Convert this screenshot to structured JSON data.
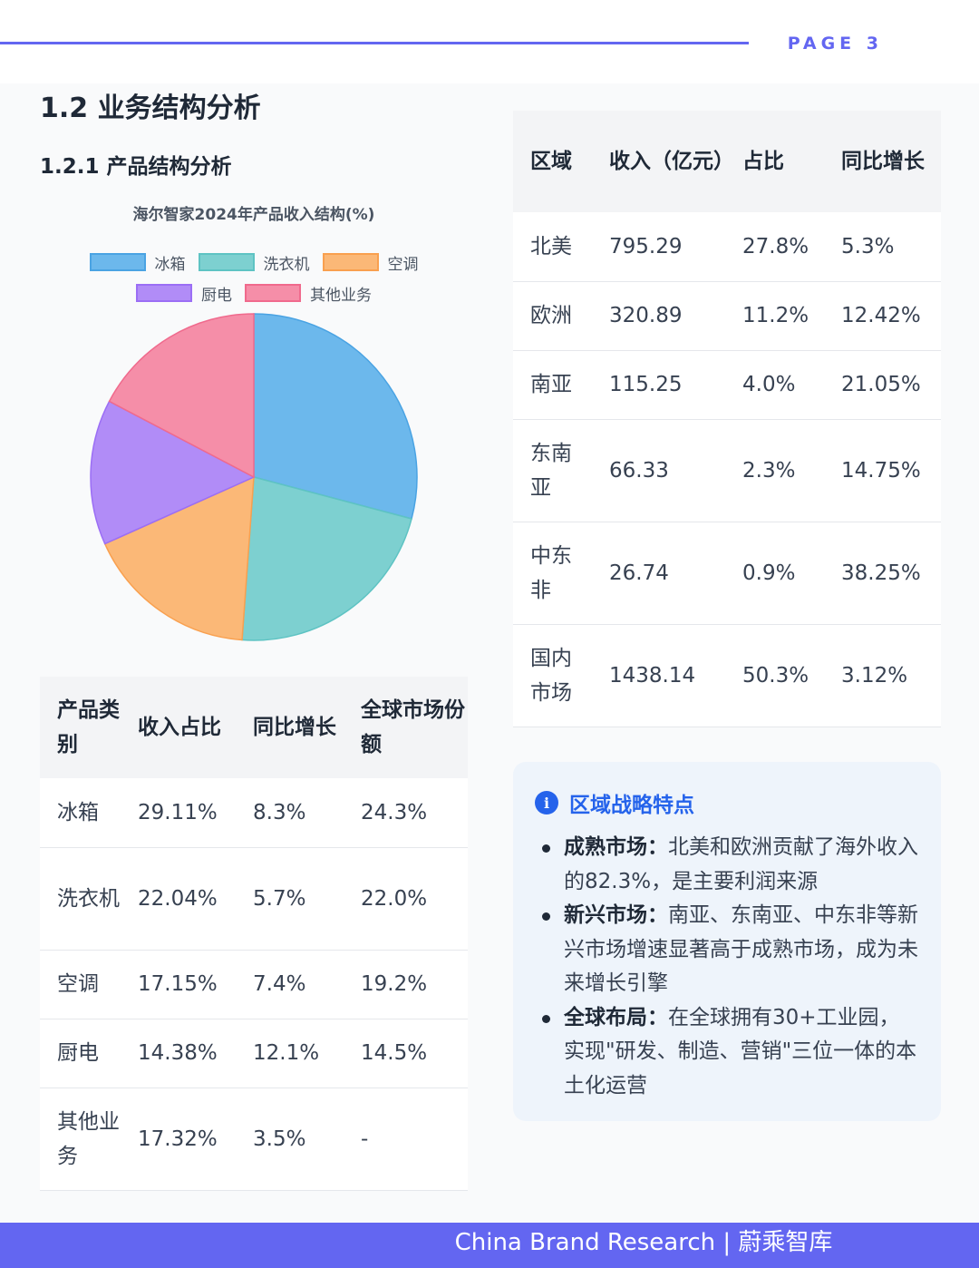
{
  "header": {
    "page_label": "PAGE 3"
  },
  "section": {
    "title": "1.2 业务结构分析",
    "subtitle": "1.2.1 产品结构分析"
  },
  "chart_data": {
    "type": "pie",
    "title": "海尔智家2024年产品收入结构(%)",
    "categories": [
      "冰箱",
      "洗衣机",
      "空调",
      "厨电",
      "其他业务"
    ],
    "values": [
      29.11,
      22.04,
      17.15,
      14.38,
      17.32
    ],
    "colors": [
      "#6cb8ec",
      "#7dd0d0",
      "#fbb877",
      "#b18cf7",
      "#f58ea8"
    ],
    "border_colors": [
      "#4aa3e3",
      "#5ec3c3",
      "#f9a04f",
      "#9b6ef5",
      "#f06a8d"
    ],
    "legend": "top"
  },
  "product_table": {
    "headers": [
      "产品类别",
      "收入占比",
      "同比增长",
      "全球市场份额"
    ],
    "rows": [
      [
        "冰箱",
        "29.11%",
        "8.3%",
        "24.3%"
      ],
      [
        "洗衣机",
        "22.04%",
        "5.7%",
        "22.0%"
      ],
      [
        "空调",
        "17.15%",
        "7.4%",
        "19.2%"
      ],
      [
        "厨电",
        "14.38%",
        "12.1%",
        "14.5%"
      ],
      [
        "其他业务",
        "17.32%",
        "3.5%",
        "-"
      ]
    ]
  },
  "region_table": {
    "headers": [
      "区域",
      "收入（亿元）",
      "占比",
      "同比增长"
    ],
    "rows": [
      [
        "北美",
        "795.29",
        "27.8%",
        "5.3%"
      ],
      [
        "欧洲",
        "320.89",
        "11.2%",
        "12.42%"
      ],
      [
        "南亚",
        "115.25",
        "4.0%",
        "21.05%"
      ],
      [
        "东南亚",
        "66.33",
        "2.3%",
        "14.75%"
      ],
      [
        "中东非",
        "26.74",
        "0.9%",
        "38.25%"
      ],
      [
        "国内市场",
        "1438.14",
        "50.3%",
        "3.12%"
      ]
    ]
  },
  "info_box": {
    "icon": "info-icon",
    "icon_glyph": "i",
    "title": "区域战略特点",
    "items": [
      {
        "label": "成熟市场",
        "text": "北美和欧洲贡献了海外收入的82.3%，是主要利润来源"
      },
      {
        "label": "新兴市场",
        "text": "南亚、东南亚、中东非等新兴市场增速显著高于成熟市场，成为未来增长引擎"
      },
      {
        "label": "全球布局",
        "text": "在全球拥有30+工业园，实现\"研发、制造、营销\"三位一体的本土化运营"
      }
    ]
  },
  "footer": {
    "text": "China Brand Research | 蔚乘智库"
  }
}
